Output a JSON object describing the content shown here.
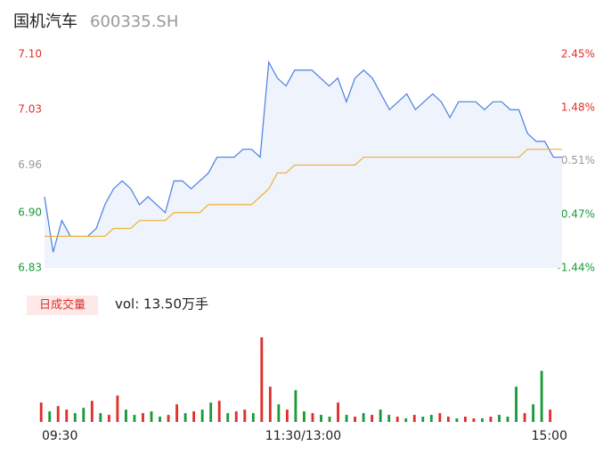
{
  "header": {
    "name": "国机汽车",
    "code": "600335.SH"
  },
  "chart_data": [
    {
      "type": "line",
      "series": [
        {
          "name": "price",
          "color": "#4a7fe0",
          "values": [
            6.92,
            6.85,
            6.89,
            6.87,
            6.87,
            6.87,
            6.88,
            6.91,
            6.93,
            6.94,
            6.93,
            6.91,
            6.92,
            6.91,
            6.9,
            6.94,
            6.94,
            6.93,
            6.94,
            6.95,
            6.97,
            6.97,
            6.97,
            6.98,
            6.98,
            6.97,
            7.09,
            7.07,
            7.06,
            7.08,
            7.08,
            7.08,
            7.07,
            7.06,
            7.07,
            7.04,
            7.07,
            7.08,
            7.07,
            7.05,
            7.03,
            7.04,
            7.05,
            7.03,
            7.04,
            7.05,
            7.04,
            7.02,
            7.04,
            7.04,
            7.04,
            7.03,
            7.04,
            7.04,
            7.03,
            7.03,
            7.0,
            6.99,
            6.99,
            6.97,
            6.97
          ]
        },
        {
          "name": "average",
          "color": "#f0b030",
          "values": [
            6.87,
            6.87,
            6.87,
            6.87,
            6.87,
            6.87,
            6.87,
            6.87,
            6.88,
            6.88,
            6.88,
            6.89,
            6.89,
            6.89,
            6.89,
            6.9,
            6.9,
            6.9,
            6.9,
            6.91,
            6.91,
            6.91,
            6.91,
            6.91,
            6.91,
            6.92,
            6.93,
            6.95,
            6.95,
            6.96,
            6.96,
            6.96,
            6.96,
            6.96,
            6.96,
            6.96,
            6.96,
            6.97,
            6.97,
            6.97,
            6.97,
            6.97,
            6.97,
            6.97,
            6.97,
            6.97,
            6.97,
            6.97,
            6.97,
            6.97,
            6.97,
            6.97,
            6.97,
            6.97,
            6.97,
            6.97,
            6.98,
            6.98,
            6.98,
            6.98,
            6.98
          ]
        }
      ],
      "ylim": [
        6.83,
        7.1
      ],
      "yticks": [
        {
          "value": 7.1,
          "label": "7.10"
        },
        7.03,
        6.96,
        {
          "value": 6.9,
          "label": "6.90"
        },
        6.83
      ],
      "ytick_colors": [
        "#e0302a",
        "#e0302a",
        "#999999",
        "#1a9a3a",
        "#1a9a3a"
      ],
      "y2lim": [
        -1.44,
        2.45
      ],
      "y2ticks": [
        {
          "value": 2.45,
          "label": "2.45%"
        },
        {
          "value": 1.48,
          "label": "1.48%"
        },
        {
          "value": 0.51,
          "label": "0.51%"
        },
        {
          "value": -0.47,
          "label": "-0.47%"
        },
        {
          "value": -1.44,
          "label": "-1.44%"
        }
      ],
      "fill": "#eef3fc"
    },
    {
      "type": "bar",
      "legend": "日成交量",
      "label": "vol: 13.50万手",
      "values": [
        22,
        12,
        18,
        14,
        10,
        16,
        24,
        10,
        8,
        30,
        14,
        8,
        10,
        12,
        6,
        8,
        20,
        10,
        12,
        14,
        22,
        24,
        10,
        12,
        14,
        10,
        96,
        40,
        20,
        14,
        36,
        12,
        10,
        8,
        6,
        22,
        8,
        6,
        10,
        8,
        14,
        8,
        6,
        4,
        8,
        6,
        8,
        10,
        6,
        4,
        6,
        4,
        4,
        6,
        8,
        6,
        40,
        10,
        20,
        58,
        14
      ],
      "colors": [
        "#e0302a",
        "#1a9a3a",
        "#e0302a",
        "#e0302a",
        "#1a9a3a",
        "#1a9a3a",
        "#e0302a",
        "#1a9a3a",
        "#e0302a",
        "#e0302a",
        "#1a9a3a",
        "#1a9a3a",
        "#e0302a",
        "#1a9a3a",
        "#1a9a3a",
        "#e0302a",
        "#e0302a",
        "#1a9a3a",
        "#e0302a",
        "#1a9a3a",
        "#1a9a3a",
        "#e0302a",
        "#1a9a3a",
        "#e0302a",
        "#e0302a",
        "#1a9a3a",
        "#e0302a",
        "#e0302a",
        "#1a9a3a",
        "#e0302a",
        "#1a9a3a",
        "#1a9a3a",
        "#e0302a",
        "#1a9a3a",
        "#1a9a3a",
        "#e0302a",
        "#1a9a3a",
        "#e0302a",
        "#1a9a3a",
        "#e0302a",
        "#1a9a3a",
        "#1a9a3a",
        "#e0302a",
        "#1a9a3a",
        "#e0302a",
        "#1a9a3a",
        "#1a9a3a",
        "#e0302a",
        "#e0302a",
        "#1a9a3a",
        "#e0302a",
        "#e0302a",
        "#1a9a3a",
        "#e0302a",
        "#1a9a3a",
        "#1a9a3a",
        "#1a9a3a",
        "#e0302a",
        "#1a9a3a",
        "#1a9a3a",
        "#e0302a"
      ],
      "ylim": [
        0,
        100
      ],
      "xtick_labels": [
        {
          "index": 0,
          "label": "09:30"
        },
        {
          "index": 30,
          "label": "11:30/13:00"
        },
        {
          "index": 60,
          "label": "15:00"
        }
      ]
    }
  ]
}
